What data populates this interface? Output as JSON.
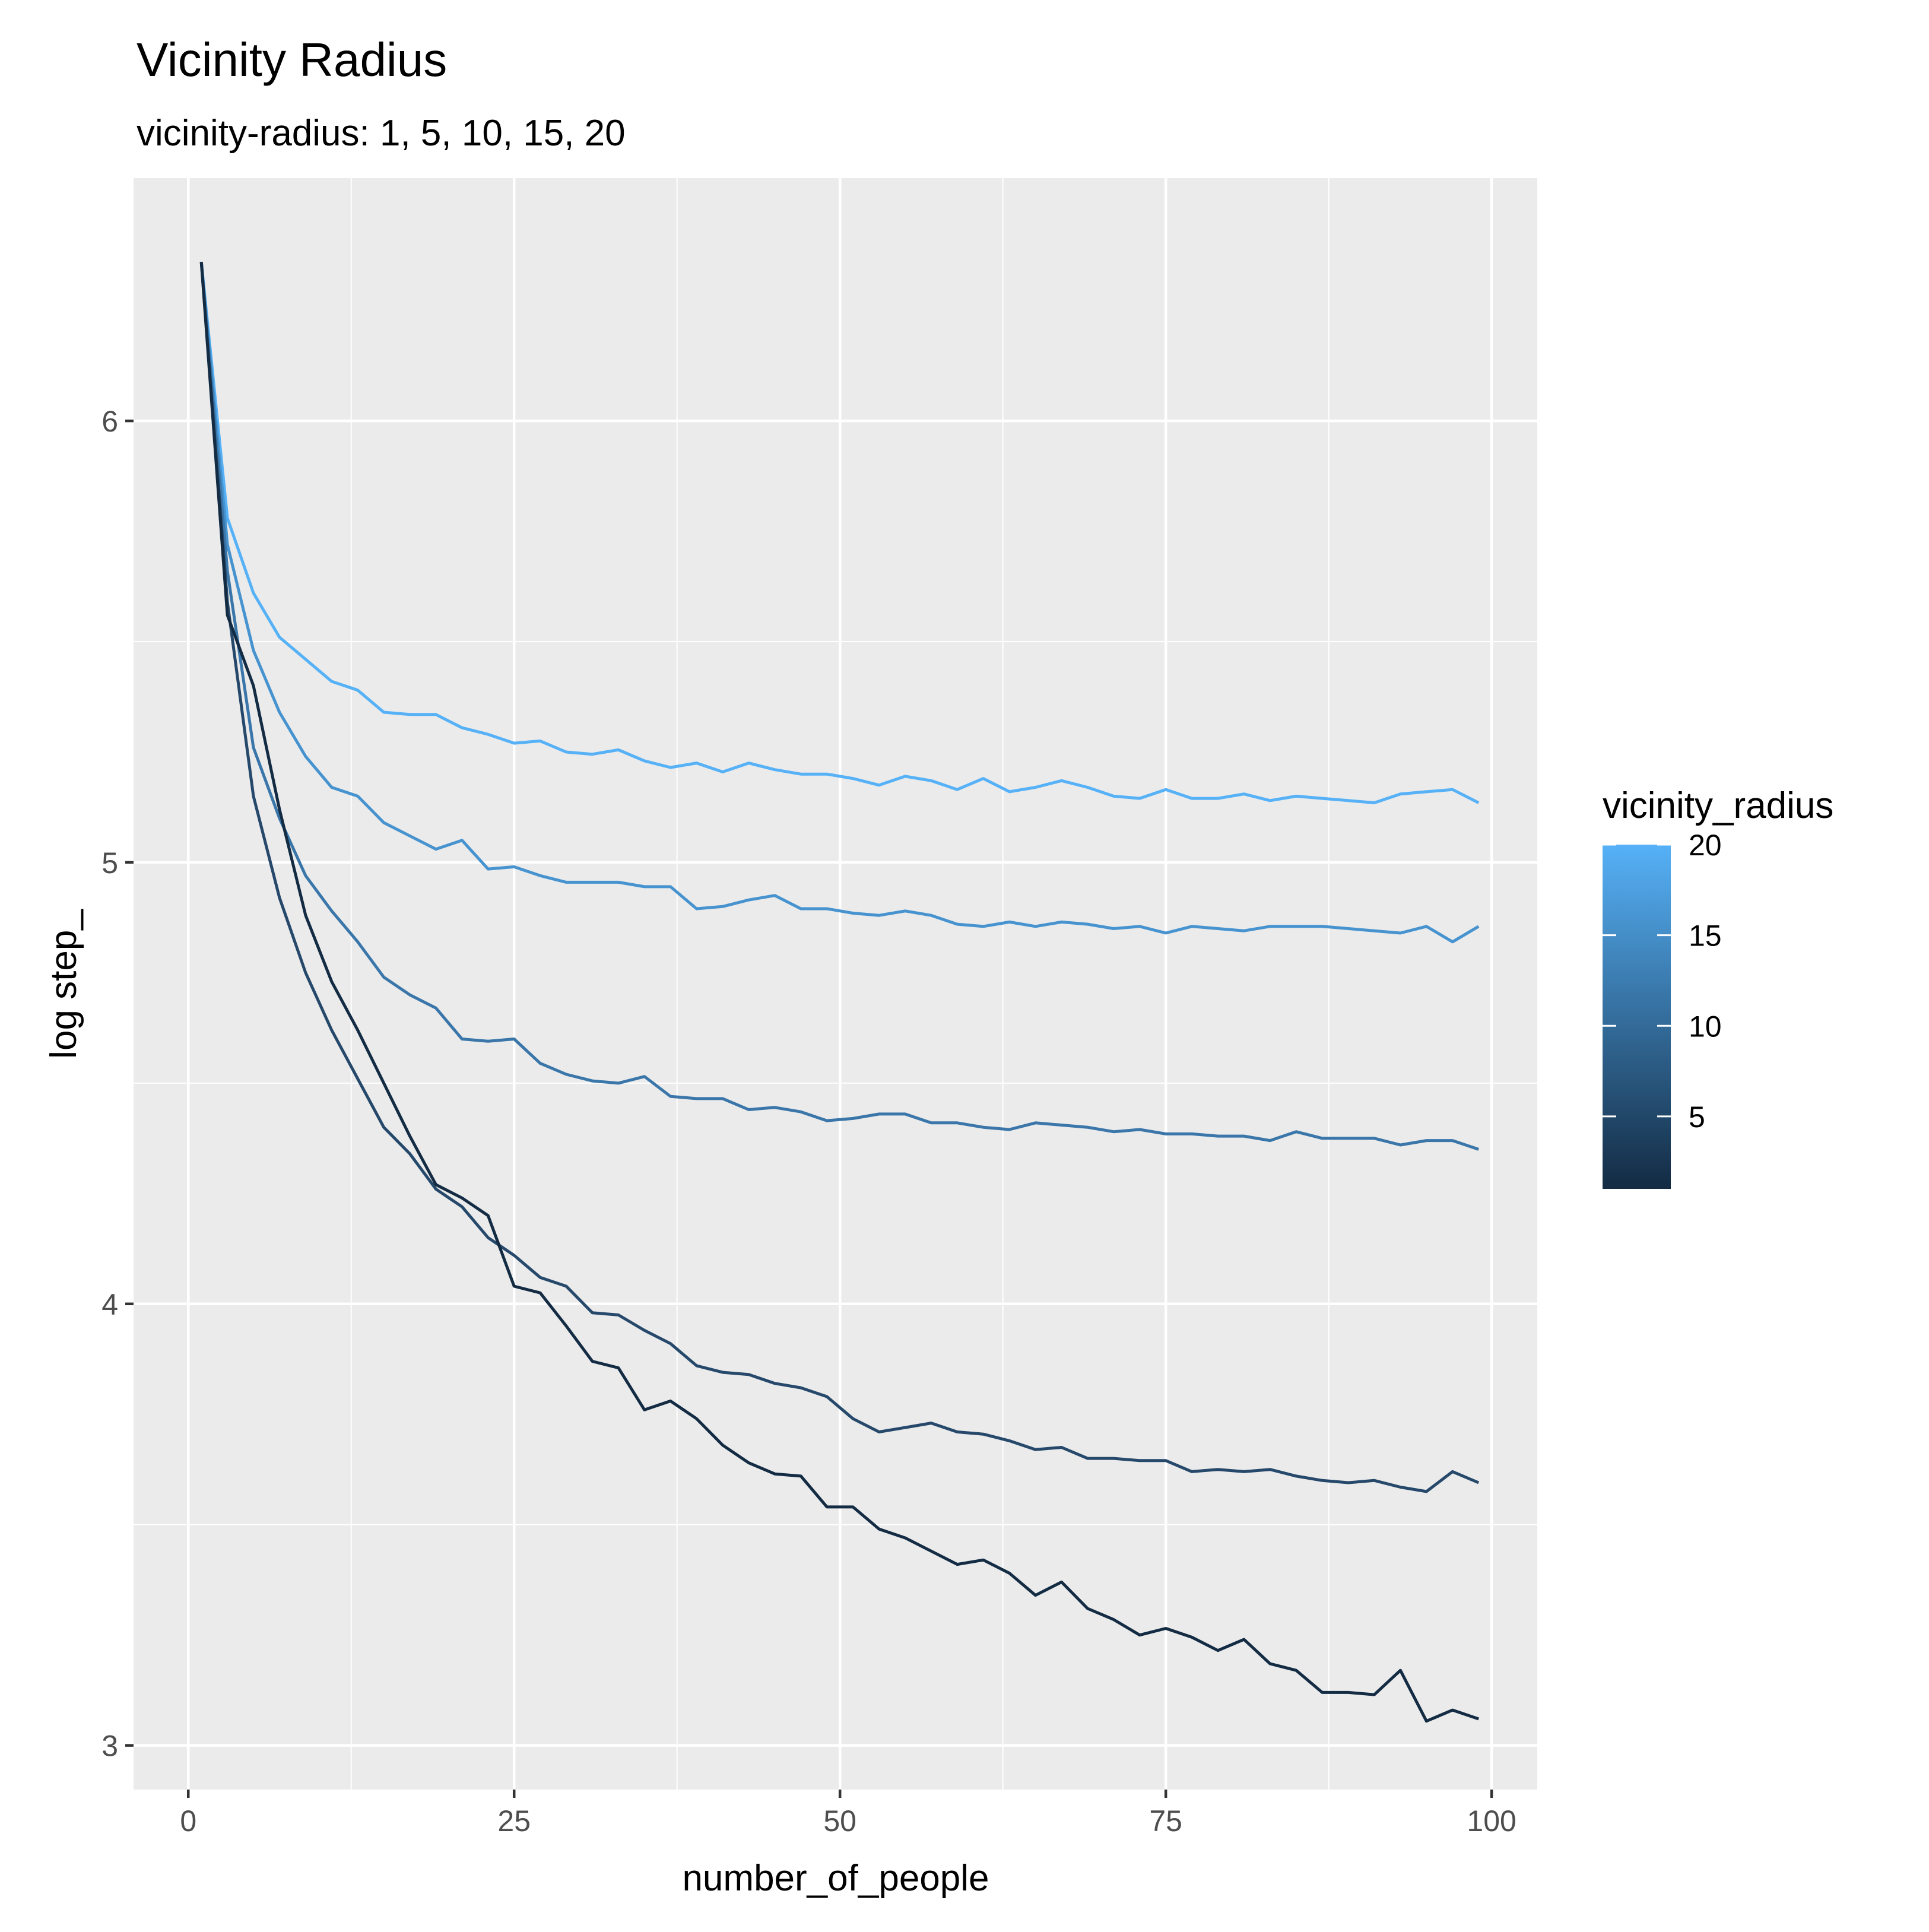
{
  "chart_data": {
    "type": "line",
    "title": "Vicinity Radius",
    "subtitle": "vicinity-radius: 1, 5, 10, 15, 20",
    "xlabel": "number_of_people",
    "ylabel": "log step_",
    "xlim": [
      -4.2,
      103.5
    ],
    "ylim": [
      2.9,
      6.55
    ],
    "x_ticks": [
      0,
      25,
      50,
      75,
      100
    ],
    "y_ticks": [
      3,
      4,
      5,
      6
    ],
    "x_minor_ticks": [
      12.5,
      37.5,
      62.5,
      87.5
    ],
    "y_minor_ticks": [
      3.5,
      4.5,
      5.5
    ],
    "grid": true,
    "panel_background": "#ebebeb",
    "grid_color": "#ffffff",
    "legend": {
      "title": "vicinity_radius",
      "position": "right",
      "type": "colorbar",
      "labels": [
        "20",
        "15",
        "10",
        "5"
      ],
      "label_values": [
        20,
        15,
        10,
        5
      ],
      "range": [
        1,
        20
      ],
      "color_low": "#132b43",
      "color_high": "#56b1f7"
    },
    "x": [
      1,
      3,
      5,
      7,
      9,
      11,
      13,
      15,
      17,
      19,
      21,
      23,
      25,
      27,
      29,
      31,
      33,
      35,
      37,
      39,
      41,
      43,
      45,
      47,
      49,
      51,
      53,
      55,
      57,
      59,
      61,
      63,
      65,
      67,
      69,
      71,
      73,
      75,
      77,
      79,
      81,
      83,
      85,
      87,
      89,
      91,
      93,
      95,
      97,
      99
    ],
    "series": [
      {
        "vicinity_radius": 20,
        "color": "#56b1f7",
        "values": [
          6.36,
          5.78,
          5.61,
          5.51,
          5.46,
          5.41,
          5.39,
          5.34,
          5.335,
          5.335,
          5.305,
          5.29,
          5.27,
          5.275,
          5.25,
          5.245,
          5.255,
          5.23,
          5.215,
          5.225,
          5.205,
          5.225,
          5.21,
          5.2,
          5.2,
          5.19,
          5.175,
          5.195,
          5.185,
          5.165,
          5.19,
          5.16,
          5.17,
          5.185,
          5.17,
          5.15,
          5.145,
          5.165,
          5.145,
          5.145,
          5.155,
          5.14,
          5.15,
          5.145,
          5.14,
          5.135,
          5.155,
          5.16,
          5.165,
          5.135
        ]
      },
      {
        "vicinity_radius": 15,
        "color": "#4793cf",
        "values": [
          6.36,
          5.72,
          5.48,
          5.34,
          5.24,
          5.17,
          5.15,
          5.09,
          5.06,
          5.03,
          5.05,
          4.985,
          4.99,
          4.97,
          4.955,
          4.955,
          4.955,
          4.945,
          4.945,
          4.895,
          4.9,
          4.915,
          4.925,
          4.895,
          4.895,
          4.885,
          4.88,
          4.89,
          4.88,
          4.86,
          4.855,
          4.865,
          4.855,
          4.865,
          4.86,
          4.85,
          4.855,
          4.84,
          4.855,
          4.85,
          4.845,
          4.855,
          4.855,
          4.855,
          4.85,
          4.845,
          4.84,
          4.855,
          4.82,
          4.855
        ]
      },
      {
        "vicinity_radius": 10,
        "color": "#3a76a9",
        "values": [
          6.36,
          5.66,
          5.26,
          5.1,
          4.97,
          4.89,
          4.82,
          4.74,
          4.7,
          4.67,
          4.6,
          4.595,
          4.6,
          4.545,
          4.52,
          4.505,
          4.5,
          4.515,
          4.47,
          4.465,
          4.465,
          4.44,
          4.445,
          4.435,
          4.415,
          4.42,
          4.43,
          4.43,
          4.41,
          4.41,
          4.4,
          4.395,
          4.41,
          4.405,
          4.4,
          4.39,
          4.395,
          4.385,
          4.385,
          4.38,
          4.38,
          4.37,
          4.39,
          4.375,
          4.375,
          4.375,
          4.36,
          4.37,
          4.37,
          4.35
        ]
      },
      {
        "vicinity_radius": 5,
        "color": "#26496b",
        "values": [
          6.36,
          5.59,
          5.15,
          4.92,
          4.75,
          4.62,
          4.51,
          4.4,
          4.34,
          4.26,
          4.22,
          4.15,
          4.11,
          4.06,
          4.04,
          3.98,
          3.975,
          3.94,
          3.91,
          3.86,
          3.845,
          3.84,
          3.82,
          3.81,
          3.79,
          3.74,
          3.71,
          3.72,
          3.73,
          3.71,
          3.705,
          3.69,
          3.67,
          3.675,
          3.65,
          3.65,
          3.645,
          3.645,
          3.62,
          3.625,
          3.62,
          3.625,
          3.61,
          3.6,
          3.595,
          3.6,
          3.585,
          3.575,
          3.62,
          3.595
        ]
      },
      {
        "vicinity_radius": 1,
        "color": "#132b43",
        "values": [
          6.36,
          5.56,
          5.4,
          5.12,
          4.88,
          4.73,
          4.62,
          4.5,
          4.38,
          4.27,
          4.24,
          4.2,
          4.04,
          4.025,
          3.95,
          3.87,
          3.855,
          3.76,
          3.78,
          3.74,
          3.68,
          3.64,
          3.615,
          3.61,
          3.54,
          3.54,
          3.49,
          3.47,
          3.44,
          3.41,
          3.42,
          3.39,
          3.34,
          3.37,
          3.31,
          3.285,
          3.25,
          3.265,
          3.245,
          3.215,
          3.24,
          3.185,
          3.17,
          3.12,
          3.12,
          3.115,
          3.17,
          3.055,
          3.08,
          3.06
        ]
      }
    ]
  }
}
